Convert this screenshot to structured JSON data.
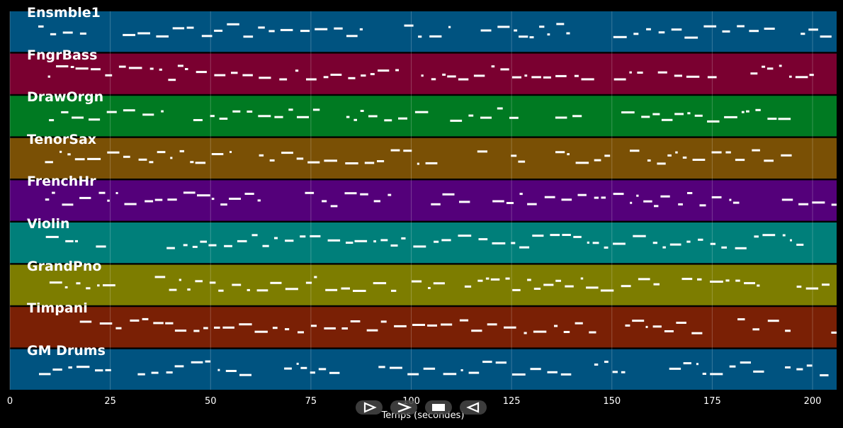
{
  "chart_data": {
    "type": "piano-roll",
    "tracks": [
      {
        "name": "Ensmble1",
        "color": "#005380"
      },
      {
        "name": "FngrBass",
        "color": "#7a0030"
      },
      {
        "name": "DrawOrgn",
        "color": "#007a22"
      },
      {
        "name": "TenorSax",
        "color": "#7a5005"
      },
      {
        "name": "FrenchHr",
        "color": "#54007a"
      },
      {
        "name": "Violin",
        "color": "#007f7a"
      },
      {
        "name": "GrandPno",
        "color": "#7d7d00"
      },
      {
        "name": "Timpani",
        "color": "#7a2005"
      },
      {
        "name": "GM Drums",
        "color": "#005380"
      }
    ],
    "x_ticks": [
      "0",
      "25",
      "50",
      "75",
      "100",
      "125",
      "150",
      "175",
      "200"
    ],
    "xlabel": "Temps (secondes)",
    "xlim": [
      0,
      206
    ],
    "grid": true,
    "note_color": "#ffffff"
  },
  "controls": [
    {
      "name": "rewind",
      "icon": "play-outline-icon"
    },
    {
      "name": "forward",
      "icon": "fast-forward-icon"
    },
    {
      "name": "stop",
      "icon": "stop-icon"
    },
    {
      "name": "back",
      "icon": "back-icon"
    }
  ]
}
